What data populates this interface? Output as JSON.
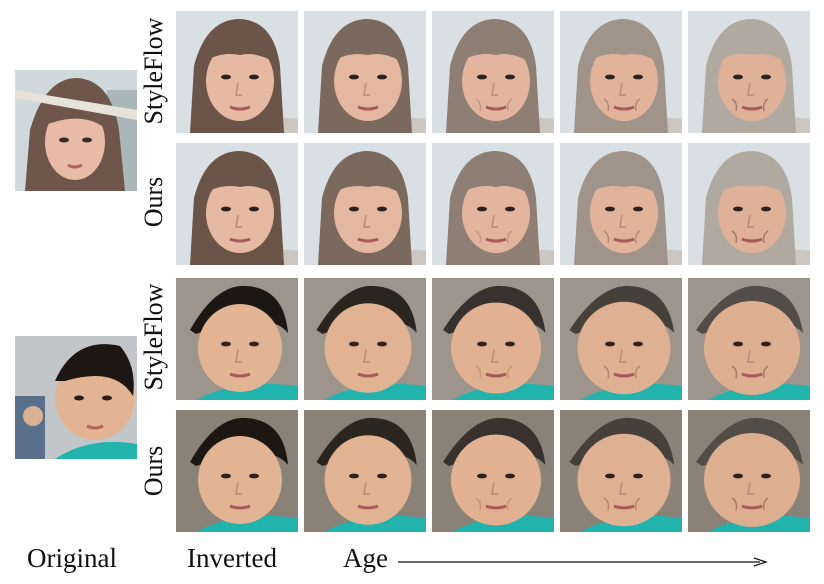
{
  "row_labels": [
    "StyleFlow",
    "Ours",
    "StyleFlow",
    "Ours"
  ],
  "bottom_labels": {
    "original": "Original",
    "inverted": "Inverted",
    "age": "Age"
  },
  "columns": [
    "inverted",
    "age-1",
    "age-2",
    "age-3",
    "age-4"
  ],
  "subjects": [
    {
      "name": "woman",
      "skin": "#e6b9a3",
      "hair": "#6b5448",
      "bg": "#d9dfe2",
      "shirt": "#c9c7bf"
    },
    {
      "name": "boy",
      "skin": "#e3b493",
      "hair": "#1c1712",
      "bg": "#9d948b",
      "shirt": "#22b3ad"
    }
  ],
  "colors": {
    "text": "#111111",
    "accent_shirt": "#22b3ad"
  }
}
